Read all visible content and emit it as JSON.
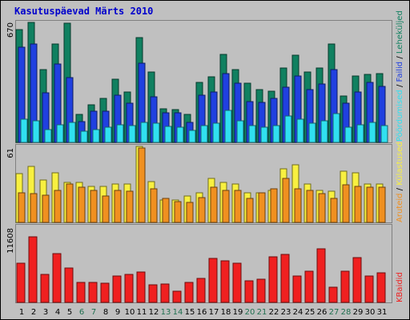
{
  "title": "Kasutuspäevad Märts 2010",
  "colors": {
    "pages": "#108060",
    "files": "#2040e0",
    "visits": "#30e0f0",
    "hosts": "#f8f040",
    "unique": "#f09020",
    "kbytes": "#f02020",
    "weekday": "#000000",
    "weekend": "#207050",
    "plot_bg": "#c0c0c0"
  },
  "legend": {
    "pages": "Leheküljed",
    "sep1": " / ",
    "files": "Failid",
    "sep2": " / ",
    "visits": "Pöördumised",
    "hosts": "Külastused",
    "sep3": " / ",
    "unique": "Aruteid",
    "kbytes": "KBaidid"
  },
  "chart_data": {
    "type": "bar",
    "x": [
      "1",
      "2",
      "3",
      "4",
      "5",
      "6",
      "7",
      "8",
      "9",
      "10",
      "11",
      "12",
      "13",
      "14",
      "15",
      "16",
      "17",
      "18",
      "19",
      "20",
      "21",
      "22",
      "23",
      "24",
      "25",
      "26",
      "27",
      "28",
      "29",
      "30",
      "31"
    ],
    "weekend": [
      false,
      false,
      false,
      false,
      false,
      true,
      true,
      false,
      false,
      false,
      false,
      false,
      true,
      true,
      false,
      false,
      false,
      false,
      false,
      true,
      true,
      false,
      false,
      false,
      false,
      false,
      true,
      true,
      false,
      false,
      false
    ],
    "panels": [
      {
        "ymax_label": "670",
        "ymax": 670,
        "series": [
          {
            "name": "Leheküljed",
            "color_key": "pages",
            "values": [
              622,
              661,
              402,
              540,
              655,
              153,
              208,
              241,
              350,
              278,
              576,
              390,
              183,
              180,
              153,
              330,
              360,
              485,
              400,
              325,
              293,
              280,
              412,
              480,
              390,
              408,
              543,
              256,
              366,
              375,
              380
            ]
          },
          {
            "name": "Failid",
            "color_key": "files",
            "values": [
              523,
              540,
              274,
              430,
              356,
              116,
              174,
              173,
              262,
              214,
              435,
              250,
              164,
              161,
              112,
              262,
              276,
              378,
              327,
              226,
              220,
              242,
              302,
              367,
              289,
              322,
              403,
              217,
              278,
              331,
              310
            ]
          },
          {
            "name": "Pöördumised",
            "color_key": "visits",
            "values": [
              130,
              120,
              72,
              95,
              110,
              60,
              72,
              82,
              98,
              92,
              112,
              104,
              86,
              84,
              68,
              94,
              106,
              178,
              120,
              92,
              85,
              94,
              146,
              127,
              107,
              118,
              160,
              82,
              98,
              112,
              94
            ]
          }
        ]
      },
      {
        "ymax_label": "61",
        "ymax": 61,
        "series": [
          {
            "name": "Külastused",
            "color_key": "hosts",
            "values": [
              39,
              45,
              34,
              40,
              32,
              32,
              29,
              29,
              31,
              31,
              61,
              33,
              18,
              18,
              21,
              24,
              35,
              32,
              31,
              24,
              24,
              26,
              43,
              46,
              31,
              26,
              25,
              41,
              40,
              31,
              31
            ]
          },
          {
            "name": "Aruteid",
            "color_key": "unique",
            "values": [
              24,
              23,
              22,
              26,
              31,
              28,
              26,
              21,
              26,
              25,
              60,
              27,
              19,
              17,
              16,
              20,
              28,
              26,
              26,
              19,
              24,
              27,
              35,
              27,
              26,
              23,
              19,
              30,
              29,
              28,
              28
            ]
          }
        ]
      },
      {
        "ymax_label": "11608",
        "ymax": 11608,
        "series": [
          {
            "name": "KBaidid",
            "color_key": "kbytes",
            "values": [
              6000,
              10050,
              4250,
              7430,
              5300,
              3000,
              3000,
              2900,
              4000,
              4280,
              4660,
              2700,
              2800,
              1700,
              3100,
              3700,
              6760,
              6300,
              6030,
              3300,
              3600,
              7000,
              7370,
              4000,
              4750,
              8200,
              2300,
              4750,
              6900,
              4000,
              4550
            ]
          }
        ]
      }
    ]
  }
}
